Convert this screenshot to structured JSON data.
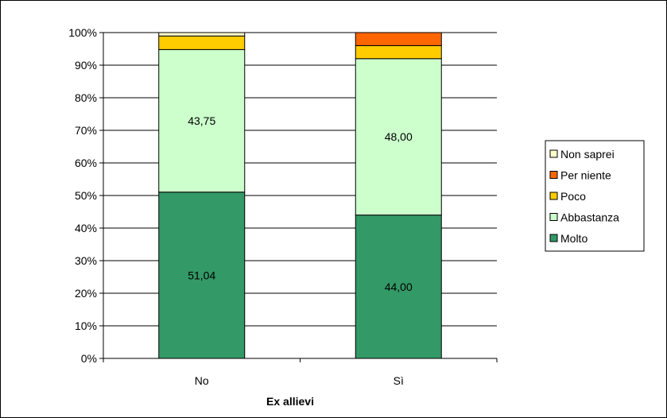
{
  "chart_data": {
    "type": "bar",
    "stacked": true,
    "percent": true,
    "title": "",
    "xlabel": "Ex allievi",
    "ylabel": "",
    "categories": [
      "No",
      "Sì"
    ],
    "ylim": [
      0,
      100
    ],
    "yticks": [
      "0%",
      "10%",
      "20%",
      "30%",
      "40%",
      "50%",
      "60%",
      "70%",
      "80%",
      "90%",
      "100%"
    ],
    "grid": true,
    "legend_position": "right",
    "series": [
      {
        "name": "Molto",
        "values": [
          51.04,
          44.0
        ],
        "labels": [
          "51,04",
          "44,00"
        ],
        "color": "#339966"
      },
      {
        "name": "Abbastanza",
        "values": [
          43.75,
          48.0
        ],
        "labels": [
          "43,75",
          "48,00"
        ],
        "color": "#CCFFCC"
      },
      {
        "name": "Poco",
        "values": [
          4.17,
          4.0
        ],
        "labels": [
          "",
          ""
        ],
        "color": "#FFCC00"
      },
      {
        "name": "Per niente",
        "values": [
          0.0,
          4.0
        ],
        "labels": [
          "",
          ""
        ],
        "color": "#FF6600"
      },
      {
        "name": "Non saprei",
        "values": [
          1.04,
          0.0
        ],
        "labels": [
          "",
          ""
        ],
        "color": "#FFFFCC"
      }
    ]
  }
}
